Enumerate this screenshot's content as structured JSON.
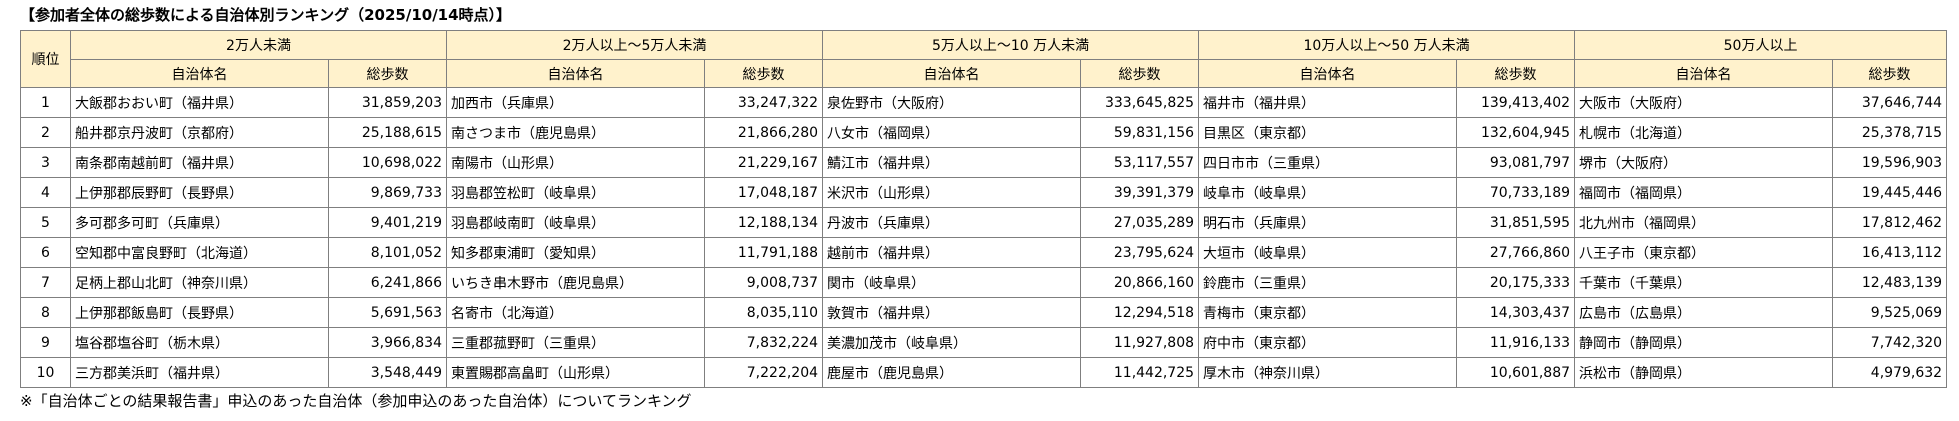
{
  "title": "【参加者全体の総歩数による自治体別ランキング（2025/10/14時点）】",
  "header": {
    "rank_label": "順位",
    "groups": [
      "2万人未満",
      "2万人以上～5万人未満",
      "5万人以上～10 万人未満",
      "10万人以上～50 万人未満",
      "50万人以上"
    ],
    "name_label": "自治体名",
    "steps_label": "総歩数"
  },
  "rows": [
    {
      "rank": "1",
      "cells": [
        {
          "name": "大飯郡おおい町（福井県）",
          "steps": "31,859,203"
        },
        {
          "name": "加西市（兵庫県）",
          "steps": "33,247,322"
        },
        {
          "name": "泉佐野市（大阪府）",
          "steps": "333,645,825"
        },
        {
          "name": "福井市（福井県）",
          "steps": "139,413,402"
        },
        {
          "name": "大阪市（大阪府）",
          "steps": "37,646,744"
        }
      ]
    },
    {
      "rank": "2",
      "cells": [
        {
          "name": "船井郡京丹波町（京都府）",
          "steps": "25,188,615"
        },
        {
          "name": "南さつま市（鹿児島県）",
          "steps": "21,866,280"
        },
        {
          "name": "八女市（福岡県）",
          "steps": "59,831,156"
        },
        {
          "name": "目黒区（東京都）",
          "steps": "132,604,945"
        },
        {
          "name": "札幌市（北海道）",
          "steps": "25,378,715"
        }
      ]
    },
    {
      "rank": "3",
      "cells": [
        {
          "name": "南条郡南越前町（福井県）",
          "steps": "10,698,022"
        },
        {
          "name": "南陽市（山形県）",
          "steps": "21,229,167"
        },
        {
          "name": "鯖江市（福井県）",
          "steps": "53,117,557"
        },
        {
          "name": "四日市市（三重県）",
          "steps": "93,081,797"
        },
        {
          "name": "堺市（大阪府）",
          "steps": "19,596,903"
        }
      ]
    },
    {
      "rank": "4",
      "cells": [
        {
          "name": "上伊那郡辰野町（長野県）",
          "steps": "9,869,733"
        },
        {
          "name": "羽島郡笠松町（岐阜県）",
          "steps": "17,048,187"
        },
        {
          "name": "米沢市（山形県）",
          "steps": "39,391,379"
        },
        {
          "name": "岐阜市（岐阜県）",
          "steps": "70,733,189"
        },
        {
          "name": "福岡市（福岡県）",
          "steps": "19,445,446"
        }
      ]
    },
    {
      "rank": "5",
      "cells": [
        {
          "name": "多可郡多可町（兵庫県）",
          "steps": "9,401,219"
        },
        {
          "name": "羽島郡岐南町（岐阜県）",
          "steps": "12,188,134"
        },
        {
          "name": "丹波市（兵庫県）",
          "steps": "27,035,289"
        },
        {
          "name": "明石市（兵庫県）",
          "steps": "31,851,595"
        },
        {
          "name": "北九州市（福岡県）",
          "steps": "17,812,462"
        }
      ]
    },
    {
      "rank": "6",
      "cells": [
        {
          "name": "空知郡中富良野町（北海道）",
          "steps": "8,101,052"
        },
        {
          "name": "知多郡東浦町（愛知県）",
          "steps": "11,791,188"
        },
        {
          "name": "越前市（福井県）",
          "steps": "23,795,624"
        },
        {
          "name": "大垣市（岐阜県）",
          "steps": "27,766,860"
        },
        {
          "name": "八王子市（東京都）",
          "steps": "16,413,112"
        }
      ]
    },
    {
      "rank": "7",
      "cells": [
        {
          "name": "足柄上郡山北町（神奈川県）",
          "steps": "6,241,866"
        },
        {
          "name": "いちき串木野市（鹿児島県）",
          "steps": "9,008,737"
        },
        {
          "name": "関市（岐阜県）",
          "steps": "20,866,160"
        },
        {
          "name": "鈴鹿市（三重県）",
          "steps": "20,175,333"
        },
        {
          "name": "千葉市（千葉県）",
          "steps": "12,483,139"
        }
      ]
    },
    {
      "rank": "8",
      "cells": [
        {
          "name": "上伊那郡飯島町（長野県）",
          "steps": "5,691,563"
        },
        {
          "name": "名寄市（北海道）",
          "steps": "8,035,110"
        },
        {
          "name": "敦賀市（福井県）",
          "steps": "12,294,518"
        },
        {
          "name": "青梅市（東京都）",
          "steps": "14,303,437"
        },
        {
          "name": "広島市（広島県）",
          "steps": "9,525,069"
        }
      ]
    },
    {
      "rank": "9",
      "cells": [
        {
          "name": "塩谷郡塩谷町（栃木県）",
          "steps": "3,966,834"
        },
        {
          "name": "三重郡菰野町（三重県）",
          "steps": "7,832,224"
        },
        {
          "name": "美濃加茂市（岐阜県）",
          "steps": "11,927,808"
        },
        {
          "name": "府中市（東京都）",
          "steps": "11,916,133"
        },
        {
          "name": "静岡市（静岡県）",
          "steps": "7,742,320"
        }
      ]
    },
    {
      "rank": "10",
      "cells": [
        {
          "name": "三方郡美浜町（福井県）",
          "steps": "3,548,449"
        },
        {
          "name": "東置賜郡高畠町（山形県）",
          "steps": "7,222,204"
        },
        {
          "name": "鹿屋市（鹿児島県）",
          "steps": "11,442,725"
        },
        {
          "name": "厚木市（神奈川県）",
          "steps": "10,601,887"
        },
        {
          "name": "浜松市（静岡県）",
          "steps": "4,979,632"
        }
      ]
    }
  ],
  "footnote": "※「自治体ごとの結果報告書」申込のあった自治体（参加申込のあった自治体）についてランキング",
  "colors": {
    "header_fill": "#fff2cc",
    "border": "#7f7f7f"
  }
}
